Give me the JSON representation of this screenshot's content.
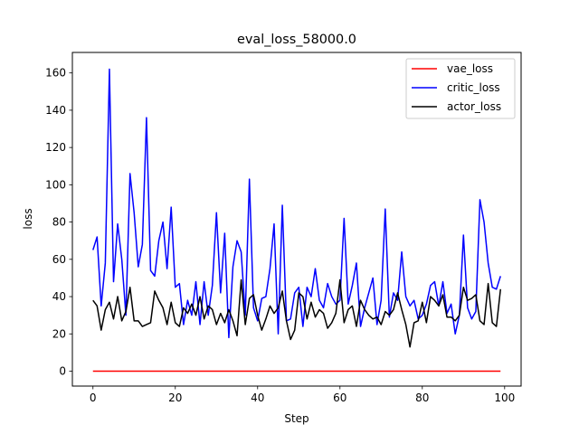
{
  "chart_data": {
    "type": "line",
    "title": "eval_loss_58000.0",
    "xlabel": "Step",
    "ylabel": "loss",
    "xlim": [
      -5,
      104
    ],
    "ylim": [
      -8,
      171
    ],
    "xticks": [
      0,
      20,
      40,
      60,
      80,
      100
    ],
    "yticks": [
      0,
      20,
      40,
      60,
      80,
      100,
      120,
      140,
      160
    ],
    "legend_position": "top-right",
    "grid": false,
    "series": [
      {
        "name": "vae_loss",
        "color": "#ff0000",
        "x": [
          0,
          99
        ],
        "y": [
          0,
          0
        ]
      },
      {
        "name": "critic_loss",
        "color": "#0000ff",
        "x": [
          0,
          1,
          2,
          3,
          4,
          5,
          6,
          7,
          8,
          9,
          10,
          11,
          12,
          13,
          14,
          15,
          16,
          17,
          18,
          19,
          20,
          21,
          22,
          23,
          24,
          25,
          26,
          27,
          28,
          29,
          30,
          31,
          32,
          33,
          34,
          35,
          36,
          37,
          38,
          39,
          40,
          41,
          42,
          43,
          44,
          45,
          46,
          47,
          48,
          49,
          50,
          51,
          52,
          53,
          54,
          55,
          56,
          57,
          58,
          59,
          60,
          61,
          62,
          63,
          64,
          65,
          66,
          67,
          68,
          69,
          70,
          71,
          72,
          73,
          74,
          75,
          76,
          77,
          78,
          79,
          80,
          81,
          82,
          83,
          84,
          85,
          86,
          87,
          88,
          89,
          90,
          91,
          92,
          93,
          94,
          95,
          96,
          97,
          98,
          99
        ],
        "y": [
          65,
          72,
          35,
          58,
          162,
          48,
          79,
          60,
          30,
          106,
          85,
          56,
          68,
          136,
          54,
          51,
          70,
          80,
          55,
          88,
          45,
          47,
          25,
          38,
          30,
          48,
          25,
          48,
          30,
          46,
          85,
          42,
          74,
          18,
          56,
          70,
          64,
          30,
          103,
          34,
          27,
          39,
          40,
          55,
          79,
          20,
          89,
          27,
          28,
          42,
          45,
          24,
          45,
          40,
          55,
          38,
          34,
          47,
          40,
          36,
          38,
          82,
          36,
          46,
          58,
          24,
          34,
          42,
          50,
          25,
          38,
          87,
          29,
          42,
          38,
          64,
          40,
          35,
          38,
          28,
          30,
          36,
          46,
          48,
          35,
          48,
          31,
          36,
          20,
          30,
          73,
          34,
          28,
          32,
          92,
          80,
          58,
          45,
          44,
          51
        ]
      },
      {
        "name": "actor_loss",
        "color": "#000000",
        "x": [
          0,
          1,
          2,
          3,
          4,
          5,
          6,
          7,
          8,
          9,
          10,
          11,
          12,
          13,
          14,
          15,
          16,
          17,
          18,
          19,
          20,
          21,
          22,
          23,
          24,
          25,
          26,
          27,
          28,
          29,
          30,
          31,
          32,
          33,
          34,
          35,
          36,
          37,
          38,
          39,
          40,
          41,
          42,
          43,
          44,
          45,
          46,
          47,
          48,
          49,
          50,
          51,
          52,
          53,
          54,
          55,
          56,
          57,
          58,
          59,
          60,
          61,
          62,
          63,
          64,
          65,
          66,
          67,
          68,
          69,
          70,
          71,
          72,
          73,
          74,
          75,
          76,
          77,
          78,
          79,
          80,
          81,
          82,
          83,
          84,
          85,
          86,
          87,
          88,
          89,
          90,
          91,
          92,
          93,
          94,
          95,
          96,
          97,
          98,
          99
        ],
        "y": [
          38,
          35,
          22,
          33,
          37,
          28,
          40,
          27,
          32,
          45,
          27,
          27,
          24,
          25,
          26,
          43,
          38,
          34,
          25,
          37,
          26,
          24,
          34,
          31,
          36,
          30,
          40,
          28,
          35,
          33,
          25,
          31,
          26,
          33,
          27,
          19,
          49,
          25,
          39,
          41,
          30,
          22,
          28,
          35,
          31,
          34,
          43,
          27,
          17,
          22,
          42,
          40,
          28,
          37,
          29,
          33,
          31,
          23,
          26,
          31,
          49,
          26,
          33,
          35,
          24,
          38,
          33,
          30,
          28,
          29,
          25,
          32,
          30,
          33,
          42,
          33,
          25,
          13,
          26,
          27,
          37,
          26,
          40,
          38,
          35,
          41,
          29,
          29,
          27,
          30,
          45,
          38,
          39,
          41,
          27,
          25,
          47,
          26,
          24,
          44
        ]
      }
    ]
  }
}
